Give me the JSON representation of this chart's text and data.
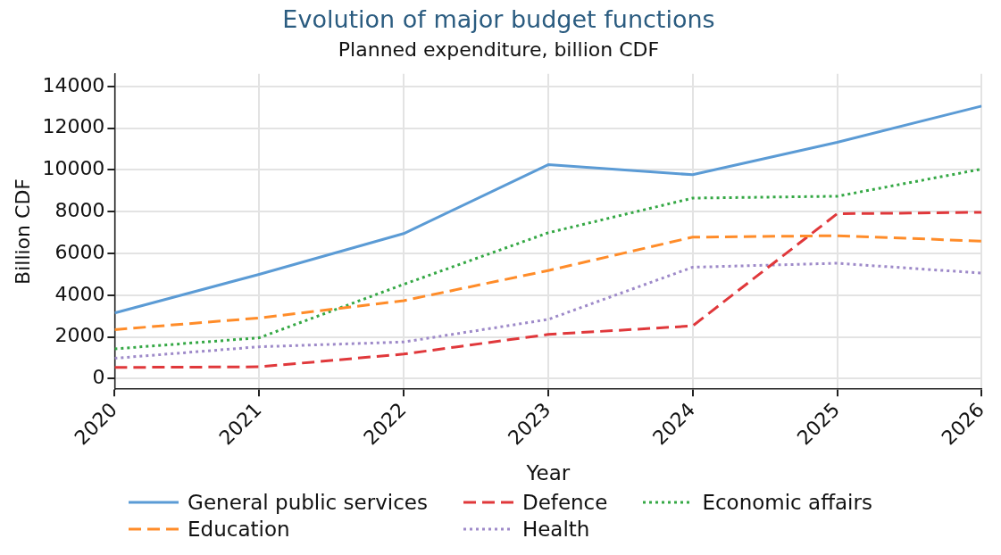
{
  "chart_data": {
    "type": "line",
    "title": "Evolution of major budget functions",
    "subtitle": "Planned expenditure, billion CDF",
    "xlabel": "Year",
    "ylabel": "Billion CDF",
    "x": [
      2020,
      2021,
      2022,
      2023,
      2024,
      2025,
      2026
    ],
    "xlim": [
      2020,
      2026
    ],
    "xticks": [
      2020,
      2021,
      2022,
      2023,
      2024,
      2025,
      2026
    ],
    "ylim": [
      -500,
      14600
    ],
    "yticks": [
      0,
      2000,
      4000,
      6000,
      8000,
      10000,
      12000,
      14000
    ],
    "grid": true,
    "legend": "bottom",
    "marker": "none",
    "series": [
      {
        "name": "General public services",
        "color": "#5b9bd5",
        "line_style": "solid",
        "values": [
          3150,
          5000,
          6950,
          10250,
          9770,
          11320,
          13060
        ]
      },
      {
        "name": "Education",
        "color": "#ff8c29",
        "line_style": "dashed",
        "values": [
          2350,
          2910,
          3740,
          5180,
          6780,
          6850,
          6590
        ]
      },
      {
        "name": "Defence",
        "color": "#e0383b",
        "line_style": "dashed",
        "values": [
          540,
          570,
          1180,
          2120,
          2530,
          7900,
          7970
        ]
      },
      {
        "name": "Health",
        "color": "#9e8ac9",
        "line_style": "dotted",
        "values": [
          980,
          1530,
          1760,
          2840,
          5340,
          5530,
          5060
        ]
      },
      {
        "name": "Economic affairs",
        "color": "#35a845",
        "line_style": "dotted",
        "values": [
          1430,
          1960,
          4520,
          6990,
          8650,
          8740,
          10040
        ]
      }
    ]
  }
}
